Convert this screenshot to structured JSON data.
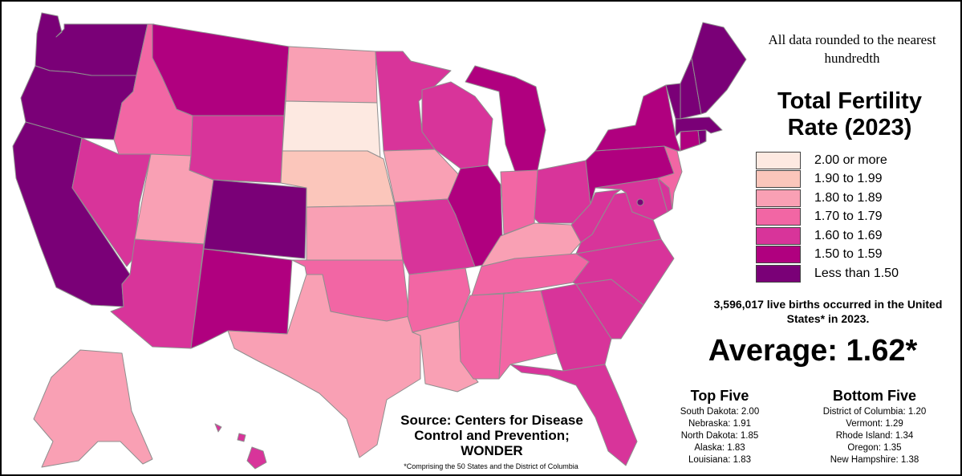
{
  "note": "All data rounded to the nearest hundredth",
  "title": "Total Fertility Rate (2023)",
  "legend": [
    {
      "label": "2.00 or more",
      "color": "#fde9e1"
    },
    {
      "label": "1.90 to 1.99",
      "color": "#fbc6bb"
    },
    {
      "label": "1.80 to 1.89",
      "color": "#f9a0b4"
    },
    {
      "label": "1.70 to 1.79",
      "color": "#f266a4"
    },
    {
      "label": "1.60 to 1.69",
      "color": "#d8349a"
    },
    {
      "label": "1.50 to 1.59",
      "color": "#b0007f"
    },
    {
      "label": "Less than 1.50",
      "color": "#7a0077"
    }
  ],
  "births": "3,596,017 live births occurred in the United States* in 2023.",
  "average": "Average: 1.62*",
  "top_five": {
    "title": "Top Five",
    "items": [
      "South Dakota: 2.00",
      "Nebraska: 1.91",
      "North Dakota: 1.85",
      "Alaska: 1.83",
      "Louisiana: 1.83"
    ]
  },
  "bottom_five": {
    "title": "Bottom Five",
    "items": [
      "District of Columbia: 1.20",
      "Vermont: 1.29",
      "Rhode Island: 1.34",
      "Oregon: 1.35",
      "New Hampshire: 1.38"
    ]
  },
  "source": "Source: Centers for Disease Control and Prevention; WONDER",
  "footnote": "*Comprising the 50 States and the District of Columbia",
  "states": [
    {
      "name": "Washington",
      "cls": 6
    },
    {
      "name": "Oregon",
      "cls": 6
    },
    {
      "name": "California",
      "cls": 6
    },
    {
      "name": "Idaho",
      "cls": 3
    },
    {
      "name": "Nevada",
      "cls": 4
    },
    {
      "name": "Utah",
      "cls": 2
    },
    {
      "name": "Arizona",
      "cls": 4
    },
    {
      "name": "Montana",
      "cls": 5
    },
    {
      "name": "Wyoming",
      "cls": 4
    },
    {
      "name": "Colorado",
      "cls": 6
    },
    {
      "name": "New Mexico",
      "cls": 5
    },
    {
      "name": "North Dakota",
      "cls": 2
    },
    {
      "name": "South Dakota",
      "cls": 0
    },
    {
      "name": "Nebraska",
      "cls": 1
    },
    {
      "name": "Kansas",
      "cls": 2
    },
    {
      "name": "Oklahoma",
      "cls": 3
    },
    {
      "name": "Texas",
      "cls": 2
    },
    {
      "name": "Minnesota",
      "cls": 4
    },
    {
      "name": "Iowa",
      "cls": 2
    },
    {
      "name": "Missouri",
      "cls": 4
    },
    {
      "name": "Arkansas",
      "cls": 3
    },
    {
      "name": "Louisiana",
      "cls": 2
    },
    {
      "name": "Wisconsin",
      "cls": 4
    },
    {
      "name": "Illinois",
      "cls": 5
    },
    {
      "name": "Michigan",
      "cls": 5
    },
    {
      "name": "Indiana",
      "cls": 3
    },
    {
      "name": "Ohio",
      "cls": 4
    },
    {
      "name": "Kentucky",
      "cls": 2
    },
    {
      "name": "Tennessee",
      "cls": 3
    },
    {
      "name": "Mississippi",
      "cls": 3
    },
    {
      "name": "Alabama",
      "cls": 3
    },
    {
      "name": "Georgia",
      "cls": 4
    },
    {
      "name": "Florida",
      "cls": 4
    },
    {
      "name": "South Carolina",
      "cls": 4
    },
    {
      "name": "North Carolina",
      "cls": 4
    },
    {
      "name": "Virginia",
      "cls": 4
    },
    {
      "name": "West Virginia",
      "cls": 4
    },
    {
      "name": "Maryland",
      "cls": 4
    },
    {
      "name": "Delaware",
      "cls": 4
    },
    {
      "name": "Pennsylvania",
      "cls": 5
    },
    {
      "name": "New Jersey",
      "cls": 3
    },
    {
      "name": "New York",
      "cls": 5
    },
    {
      "name": "Connecticut",
      "cls": 5
    },
    {
      "name": "Rhode Island",
      "cls": 6
    },
    {
      "name": "Massachusetts",
      "cls": 6
    },
    {
      "name": "Vermont",
      "cls": 6
    },
    {
      "name": "New Hampshire",
      "cls": 6
    },
    {
      "name": "Maine",
      "cls": 6
    },
    {
      "name": "Alaska",
      "cls": 2
    },
    {
      "name": "Hawaii",
      "cls": 4
    },
    {
      "name": "District of Columbia",
      "cls": 6
    }
  ]
}
